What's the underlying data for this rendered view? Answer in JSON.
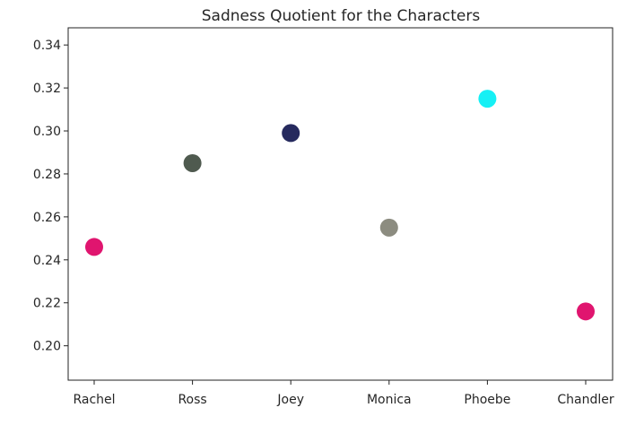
{
  "chart_data": {
    "type": "scatter",
    "title": "Sadness Quotient for the Characters",
    "xlabel": "",
    "ylabel": "",
    "categories": [
      "Rachel",
      "Ross",
      "Joey",
      "Monica",
      "Phoebe",
      "Chandler"
    ],
    "values": [
      0.246,
      0.285,
      0.299,
      0.255,
      0.315,
      0.216
    ],
    "colors": [
      "#e0156f",
      "#4f5a4f",
      "#262a5e",
      "#8c8c80",
      "#16f0f5",
      "#e0156f"
    ],
    "ylim": [
      0.184,
      0.348
    ],
    "yticks": [
      0.2,
      0.22,
      0.24,
      0.26,
      0.28,
      0.3,
      0.32,
      0.34
    ],
    "ytick_labels": [
      "0.20",
      "0.22",
      "0.24",
      "0.26",
      "0.28",
      "0.30",
      "0.32",
      "0.34"
    ],
    "grid": false,
    "legend": "none"
  }
}
